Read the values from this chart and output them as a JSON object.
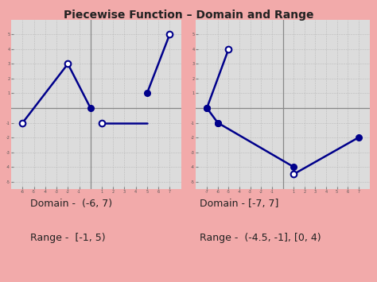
{
  "bg_color": "#f2aaaa",
  "graph_bg": "#dcdcdc",
  "grid_color": "#bbbbbb",
  "line_color": "#00008B",
  "axis_color": "#888888",
  "title": "Piecewise Function – Domain and Range",
  "title_fontsize": 10,
  "left_domain_text": "Domain -  (-6, 7)",
  "left_range_text": "Range -  [-1, 5)",
  "right_domain_text": "Domain - [-7, 7]",
  "right_range_text": "Range -  (-4.5, -1], [0, 4)",
  "text_fontsize": 9,
  "left_graph": {
    "xlim": [
      -7,
      8
    ],
    "ylim": [
      -5.5,
      6
    ],
    "xticks": [
      -6,
      -5,
      -4,
      -3,
      -2,
      -1,
      1,
      2,
      3,
      4,
      5,
      6,
      7
    ],
    "yticks": [
      -5,
      -4,
      -3,
      -2,
      -1,
      1,
      2,
      3,
      4,
      5
    ],
    "segments": [
      {
        "x": [
          -6,
          -2
        ],
        "y": [
          -1,
          3
        ],
        "open_start": true,
        "closed_end": true
      },
      {
        "x": [
          -2,
          0
        ],
        "y": [
          3,
          0
        ],
        "open_start": true,
        "closed_end": true
      },
      {
        "x": [
          1,
          5
        ],
        "y": [
          -1,
          -1
        ],
        "open_start": true,
        "closed_end": false
      },
      {
        "x": [
          5,
          7
        ],
        "y": [
          1,
          5
        ],
        "closed_start": true,
        "open_end": true
      }
    ]
  },
  "right_graph": {
    "xlim": [
      -8,
      8
    ],
    "ylim": [
      -5.5,
      6
    ],
    "xticks": [
      -7,
      -6,
      -5,
      -4,
      -3,
      -2,
      -1,
      1,
      2,
      3,
      4,
      5,
      6,
      7
    ],
    "yticks": [
      -5,
      -4,
      -3,
      -2,
      -1,
      1,
      2,
      3,
      4,
      5
    ],
    "segments": [
      {
        "x": [
          -7,
          -5
        ],
        "y": [
          0,
          4
        ],
        "closed_start": true,
        "open_end": true
      },
      {
        "x": [
          -7,
          -6
        ],
        "y": [
          0,
          -1
        ],
        "closed_start": true,
        "closed_end": true
      },
      {
        "x": [
          -6,
          1
        ],
        "y": [
          -1,
          -4
        ],
        "closed_start": true,
        "closed_end": true
      },
      {
        "x": [
          1,
          7
        ],
        "y": [
          -4.5,
          -2
        ],
        "open_start": true,
        "closed_end": true
      }
    ]
  }
}
